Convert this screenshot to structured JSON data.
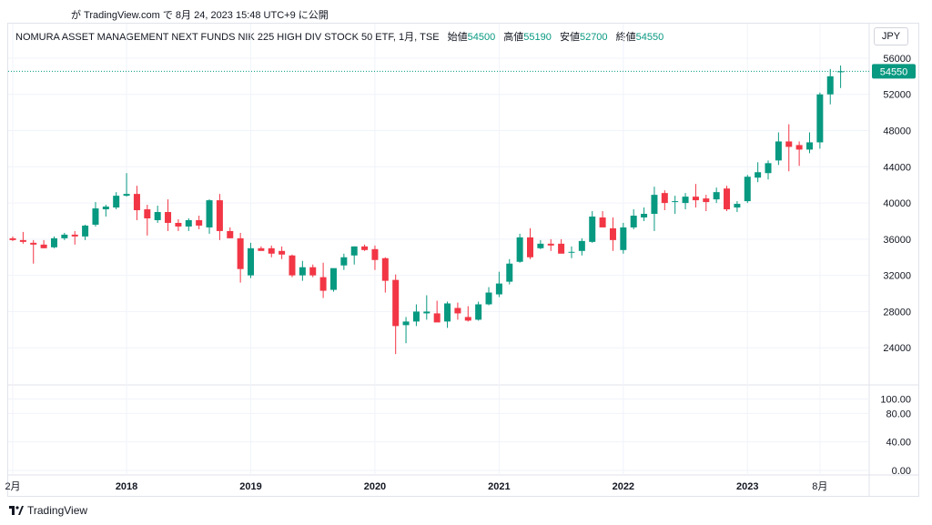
{
  "caption": "が TradingView.com で 8月 24, 2023 15:48 UTC+9 に公開",
  "legend": {
    "symbol": "NOMURA ASSET MANAGEMENT NEXT FUNDS NIK 225 HIGH DIV STOCK 50 ETF, 1月, TSE",
    "open_label": "始値",
    "open": "54500",
    "high_label": "高値",
    "high": "55190",
    "low_label": "安値",
    "low": "52700",
    "close_label": "終値",
    "close": "54550"
  },
  "currency": "JPY",
  "footer": "TradingView",
  "colors": {
    "up": "#089981",
    "down": "#f23645",
    "grid": "#f0f3fa",
    "text": "#131722",
    "last_line": "#089981"
  },
  "chart_data": {
    "type": "candlestick",
    "title": "",
    "xlabel": "",
    "ylabel": "",
    "ylim": [
      20000,
      57000
    ],
    "y_ticks": [
      "56000",
      "52000",
      "48000",
      "44000",
      "40000",
      "36000",
      "32000",
      "28000",
      "24000"
    ],
    "x_ticks": [
      {
        "label": "2月",
        "index": 0
      },
      {
        "label": "2018",
        "index": 11
      },
      {
        "label": "2019",
        "index": 23
      },
      {
        "label": "2020",
        "index": 35
      },
      {
        "label": "2021",
        "index": 47
      },
      {
        "label": "2022",
        "index": 59
      },
      {
        "label": "2023",
        "index": 71
      },
      {
        "label": "8月",
        "index": 78
      }
    ],
    "last_price": "54550",
    "grid": true,
    "candles": [
      [
        36100,
        36300,
        35800,
        35900
      ],
      [
        35900,
        36800,
        35500,
        35700
      ],
      [
        35600,
        35900,
        33300,
        35400
      ],
      [
        35400,
        35900,
        35000,
        35000
      ],
      [
        35100,
        36300,
        35000,
        36100
      ],
      [
        36100,
        36700,
        35900,
        36500
      ],
      [
        36500,
        36900,
        35400,
        36300
      ],
      [
        36300,
        37600,
        35900,
        37500
      ],
      [
        37600,
        40100,
        37400,
        39400
      ],
      [
        39300,
        39800,
        38500,
        39600
      ],
      [
        39500,
        41200,
        39300,
        40800
      ],
      [
        40800,
        43300,
        40700,
        41000
      ],
      [
        41000,
        41900,
        38100,
        39200
      ],
      [
        39300,
        39800,
        36400,
        38300
      ],
      [
        38100,
        39700,
        37800,
        39000
      ],
      [
        39000,
        40400,
        36900,
        37800
      ],
      [
        37800,
        38200,
        36900,
        37400
      ],
      [
        37400,
        38300,
        36900,
        38100
      ],
      [
        38100,
        38600,
        37100,
        37500
      ],
      [
        37300,
        40400,
        36600,
        40300
      ],
      [
        40300,
        41000,
        35900,
        36900
      ],
      [
        36900,
        37300,
        36100,
        36100
      ],
      [
        36100,
        36700,
        31200,
        32700
      ],
      [
        32000,
        35600,
        31700,
        35000
      ],
      [
        35000,
        35200,
        34800,
        34700
      ],
      [
        35000,
        35300,
        34000,
        34400
      ],
      [
        34700,
        35200,
        33800,
        34300
      ],
      [
        34200,
        34300,
        31800,
        32000
      ],
      [
        32000,
        33600,
        31400,
        32900
      ],
      [
        32900,
        33200,
        31800,
        32000
      ],
      [
        31800,
        33400,
        29500,
        30300
      ],
      [
        30400,
        32700,
        30200,
        32800
      ],
      [
        33100,
        34400,
        32600,
        34000
      ],
      [
        34200,
        35200,
        33200,
        35200
      ],
      [
        35200,
        35400,
        34700,
        34800
      ],
      [
        34900,
        35300,
        32600,
        33700
      ],
      [
        33900,
        34000,
        30100,
        31400
      ],
      [
        31500,
        32100,
        23300,
        26400
      ],
      [
        26500,
        27400,
        24500,
        26900
      ],
      [
        26900,
        28800,
        26400,
        28000
      ],
      [
        27800,
        29800,
        27100,
        28000
      ],
      [
        27800,
        29200,
        26900,
        26800
      ],
      [
        26900,
        29100,
        26200,
        28900
      ],
      [
        28400,
        29000,
        27100,
        27800
      ],
      [
        27400,
        28600,
        26900,
        27000
      ],
      [
        27100,
        29100,
        27000,
        28800
      ],
      [
        28800,
        30700,
        28700,
        30100
      ],
      [
        29900,
        32400,
        29600,
        31100
      ],
      [
        31300,
        33800,
        31000,
        33300
      ],
      [
        33500,
        36600,
        33400,
        36200
      ],
      [
        36200,
        37200,
        33800,
        34000
      ],
      [
        35000,
        35900,
        34900,
        35500
      ],
      [
        35500,
        36000,
        34700,
        35300
      ],
      [
        35500,
        36000,
        34500,
        34400
      ],
      [
        34500,
        35200,
        33900,
        34600
      ],
      [
        34700,
        36100,
        34200,
        35800
      ],
      [
        35700,
        39100,
        35600,
        38500
      ],
      [
        38400,
        39100,
        37400,
        37300
      ],
      [
        37200,
        38400,
        34700,
        35900
      ],
      [
        34800,
        37800,
        34400,
        37300
      ],
      [
        37300,
        39300,
        37100,
        38600
      ],
      [
        38400,
        39500,
        38000,
        38800
      ],
      [
        38800,
        41800,
        36900,
        40900
      ],
      [
        41100,
        41400,
        39200,
        40000
      ],
      [
        40100,
        40800,
        38800,
        40200
      ],
      [
        40000,
        41100,
        39300,
        40700
      ],
      [
        40700,
        42100,
        39500,
        40300
      ],
      [
        40500,
        40900,
        39100,
        40100
      ],
      [
        40400,
        41700,
        40000,
        41200
      ],
      [
        41600,
        41900,
        39100,
        39300
      ],
      [
        39500,
        40200,
        39000,
        39900
      ],
      [
        40200,
        43100,
        40000,
        42900
      ],
      [
        42800,
        44500,
        42300,
        43400
      ],
      [
        43300,
        44700,
        42600,
        44400
      ],
      [
        44700,
        47800,
        44200,
        46800
      ],
      [
        46800,
        48700,
        43500,
        46200
      ],
      [
        46400,
        46800,
        44100,
        45900
      ],
      [
        45900,
        47800,
        45500,
        46700
      ],
      [
        46700,
        52200,
        46000,
        52000
      ],
      [
        52000,
        54800,
        50900,
        54000
      ],
      [
        54500,
        55190,
        52700,
        54550
      ]
    ]
  },
  "volume_data": {
    "ylim": [
      0,
      120
    ],
    "ticks": [
      "100.00",
      "80.00",
      "40.00",
      "0.00"
    ]
  }
}
